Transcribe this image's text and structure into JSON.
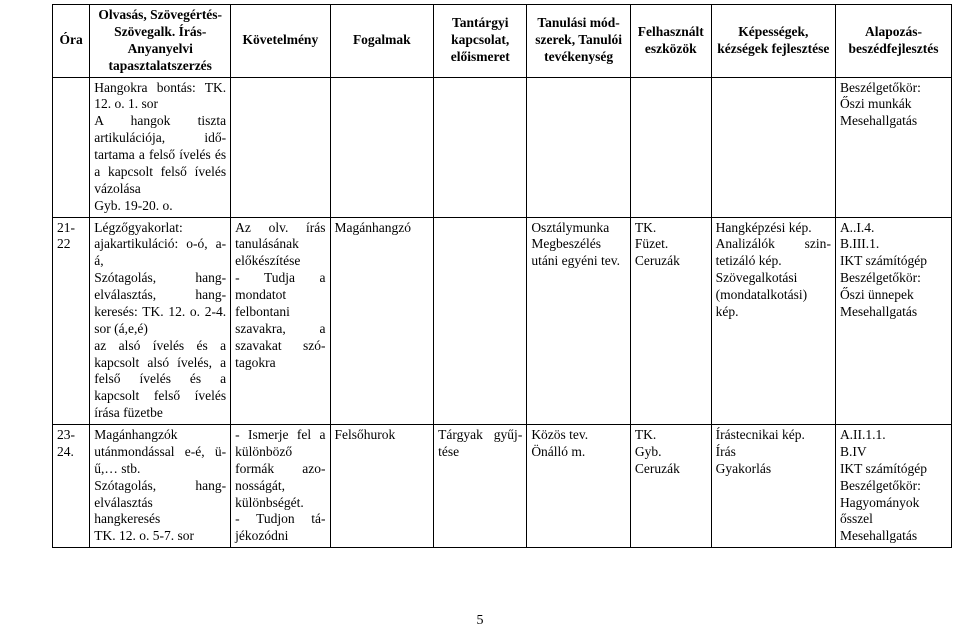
{
  "table": {
    "headers": {
      "ora": "Óra",
      "olv": "Olvasás, Szöveg­értés-Szövegalk. Írás-Anyanyelvi tapasztalatszerzés",
      "kov": "Követelmény",
      "fog": "Fogalmak",
      "tant": "Tantárgyi kapcsolat, előismeret",
      "tanul": "Tanulási mód­szerek, Tanulói tevé­kenység",
      "felh": "Felhasznált eszközök",
      "kep": "Képességek, kézségek fej­lesztése",
      "alap": "Alapozás­beszédfejlesztés"
    },
    "rows": [
      {
        "ora": "",
        "olv": "Hangokra bontás: TK. 12. o. 1. sor\nA hangok tiszta artikulációja, idő­tartama a felső íve­lés és a kapcsolt felső ívelés vázolá­sa\nGyb. 19-20. o.",
        "kov": "",
        "fog": "",
        "tant": "",
        "tanul": "",
        "felh": "",
        "kep": "",
        "alap": "Beszélgetőkör:\nŐszi munkák\nMesehallgatás"
      },
      {
        "ora": "21-22",
        "olv": "Légzőgyakorlat: ajakartikuláció: o-ó, a-á,\nSzótagolás, hang­elválasztás, hang­keresés: TK. 12. o. 2-4. sor (á,e,é)\naz alsó ívelés és a kapcsolt alsó íve­lés, a felső ívelés és a kapcsolt felső ívelés írása füzetbe",
        "kov": "Az olv. írás tanulásának előkészítése\n- Tudja a mondatot felbontani szavakra, a szavakat szó­tagokra",
        "fog": "Magánhangzó",
        "tant": "",
        "tanul": "Osztálymunka\nMegbeszélés utáni egyéni tev.",
        "felh": "TK.\nFüzet.\nCeruzák",
        "kep": "Hangképzési kép.\nAnalizálók szin­tetizáló kép.\nSzövegalkotási (mondatalkotási) kép.",
        "alap": "A..I.4.\nB.III.1.\nIKT számítógép\nBeszélgetőkör:\nŐszi ünnepek\nMesehallgatás"
      },
      {
        "ora": "23-24.",
        "olv": "Magánhangzók utánmondással e-é, ü-ű,… stb.\nSzótagolás, hang­elválasztás\nhangkeresés\nTK. 12. o. 5-7. sor",
        "kov": "- Ismerje fel a különböző formák azo­nosságát, különbségét.\n- Tudjon tá­jékozódni",
        "fog": "Felsőhurok",
        "tant": "Tárgyak gyűj­tése",
        "tanul": "Közös tev.\nÖnálló m.",
        "felh": "TK.\nGyb.\nCeruzák",
        "kep": "Írástecnikai kép.\nÍrás\nGyakorlás",
        "alap": "A.II.1.1.\nB.IV\nIKT számítógép\nBeszélgetőkör:\nHagyományok ősszel\nMesehallgatás"
      }
    ]
  },
  "page_number": "5"
}
